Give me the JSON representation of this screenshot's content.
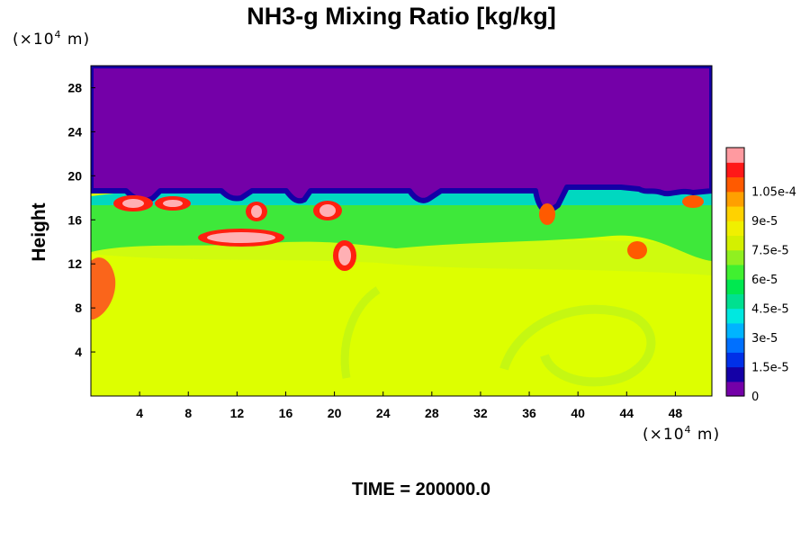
{
  "chart_data": {
    "type": "heatmap",
    "title": "NH3-g Mixing Ratio [kg/kg]",
    "ylabel": "Height",
    "xlabel": "",
    "x_unit": {
      "prefix": "(×10",
      "exp": "4",
      "suffix": " m)"
    },
    "y_unit": {
      "prefix": "(×10",
      "exp": "4",
      "suffix": " m)"
    },
    "xlim": [
      0,
      51
    ],
    "ylim": [
      0,
      30
    ],
    "x_ticks": [
      4,
      8,
      12,
      16,
      20,
      24,
      28,
      32,
      36,
      40,
      44,
      48
    ],
    "y_ticks": [
      4,
      8,
      12,
      16,
      20,
      24,
      28
    ],
    "field_summary": {
      "above_cloud_top_value": 0,
      "interior_value": 8e-05,
      "cloud_layer_height_range": [
        12,
        18.5
      ],
      "max_value": 0.00011
    },
    "colorbar": {
      "min": 0,
      "max": 0.0001125,
      "step": 7.5e-06,
      "tick_labels": [
        "0",
        "1.5e-5",
        "3e-5",
        "4.5e-5",
        "6e-5",
        "7.5e-5",
        "9e-5",
        "1.05e-4"
      ],
      "colors": [
        "#7400a8",
        "#1400a6",
        "#0030e8",
        "#0070ff",
        "#00b4ff",
        "#00e8e0",
        "#00e090",
        "#00e850",
        "#40f030",
        "#90f020",
        "#d4f000",
        "#f0f000",
        "#ffd200",
        "#ffa000",
        "#ff5a00",
        "#ff1818",
        "#ff9aa0"
      ]
    },
    "footer": "TIME = 200000.0"
  }
}
